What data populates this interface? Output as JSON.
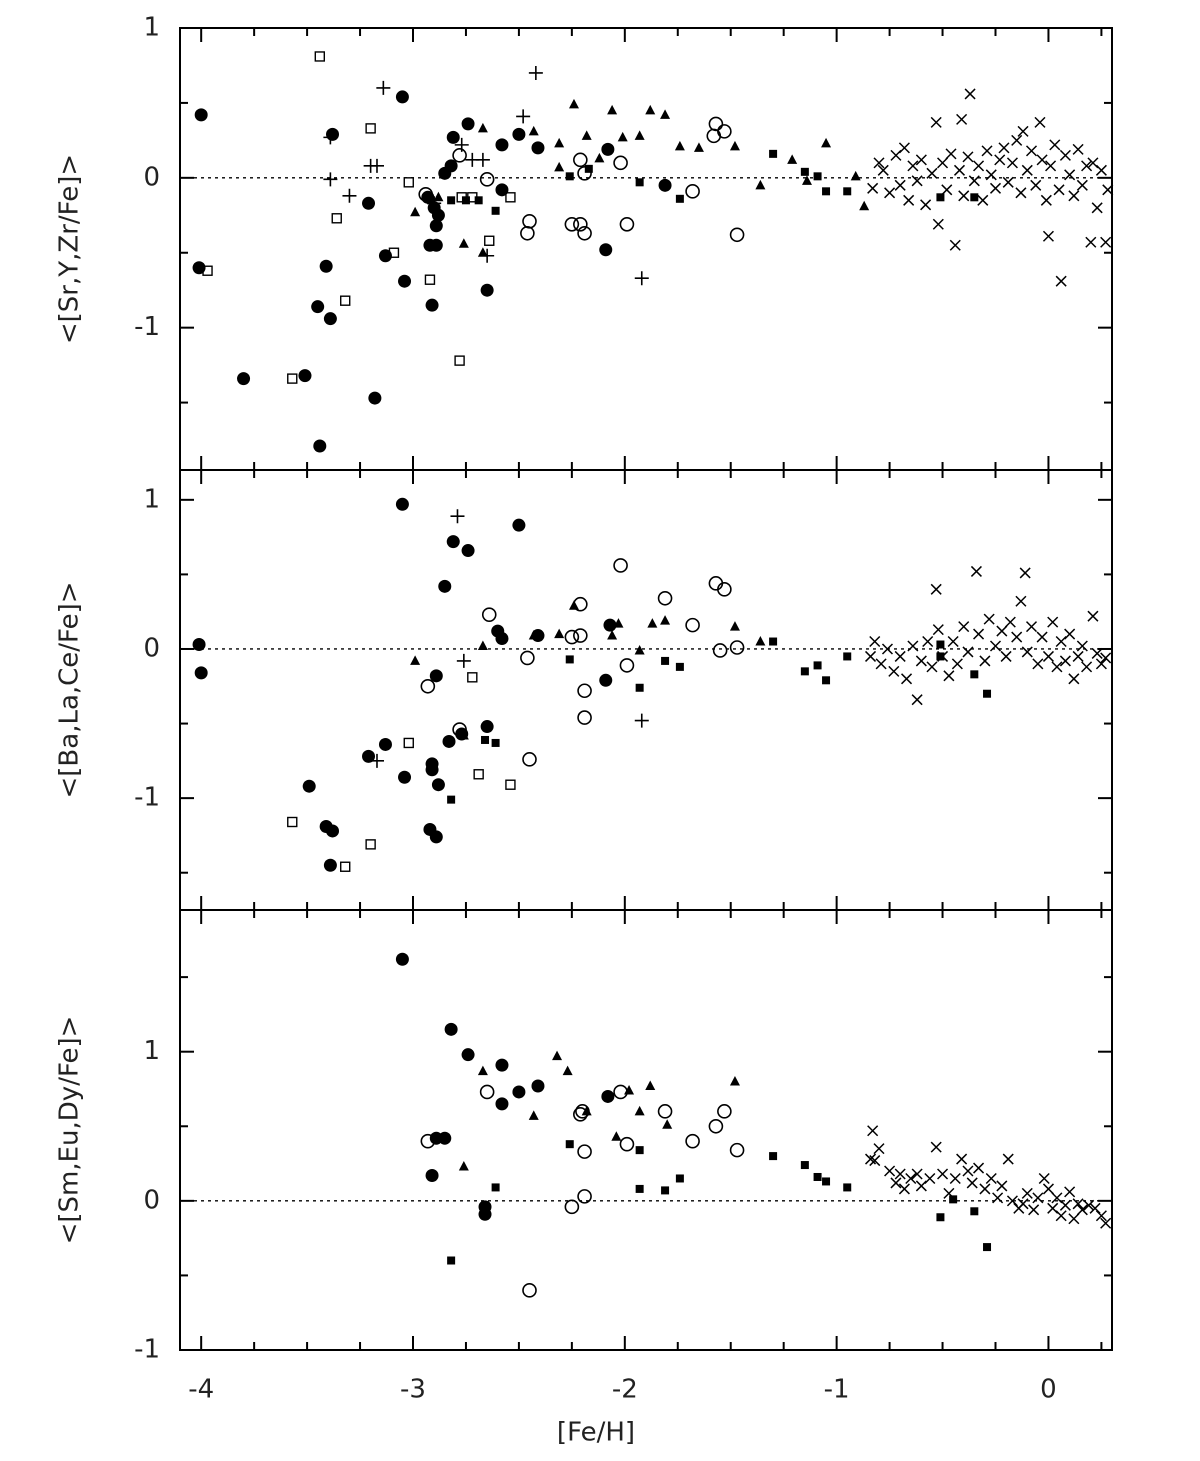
{
  "chart_data": [
    {
      "type": "scatter",
      "ylabel": "<[Sr,Y,Zr/Fe]>",
      "xlim": [
        -4.1,
        0.3
      ],
      "ylim": [
        -1.95,
        1.0
      ],
      "yticks": [
        -1,
        0,
        1
      ],
      "yminor": [
        -1.5,
        -0.5,
        0.5
      ],
      "reference_line": 0,
      "series": [
        {
          "marker": "filled-circle",
          "color": "#000000",
          "x": [
            -4.0,
            -4.01,
            -3.8,
            -3.51,
            -3.45,
            -3.41,
            -3.39,
            -3.38,
            -3.44,
            -3.18,
            -3.21,
            -3.13,
            -3.05,
            -3.04,
            -2.91,
            -2.92,
            -2.89,
            -2.89,
            -2.88,
            -2.9,
            -2.85,
            -2.82,
            -2.81,
            -2.74,
            -2.65,
            -2.58,
            -2.58,
            -2.5,
            -2.41,
            -2.08,
            -2.09,
            -1.81,
            -2.93
          ],
          "values": [
            0.42,
            -0.6,
            -1.34,
            -1.32,
            -0.86,
            -0.59,
            -0.94,
            0.29,
            -1.79,
            -1.47,
            -0.17,
            -0.52,
            0.54,
            -0.69,
            -0.85,
            -0.45,
            -0.45,
            -0.32,
            -0.25,
            -0.2,
            0.03,
            0.08,
            0.27,
            0.36,
            -0.75,
            0.22,
            -0.08,
            0.29,
            0.2,
            0.19,
            -0.48,
            -0.05,
            -0.13
          ]
        },
        {
          "marker": "open-circle",
          "color": "#000000",
          "x": [
            -2.94,
            -2.78,
            -2.65,
            -2.45,
            -2.46,
            -2.25,
            -2.21,
            -2.19,
            -2.21,
            -2.19,
            -2.02,
            -1.99,
            -1.68,
            -1.57,
            -1.53,
            -1.58,
            -1.47
          ],
          "values": [
            -0.11,
            0.15,
            -0.01,
            -0.29,
            -0.37,
            -0.31,
            0.12,
            0.03,
            -0.31,
            -0.37,
            0.1,
            -0.31,
            -0.09,
            0.36,
            0.31,
            0.28,
            -0.38
          ]
        },
        {
          "marker": "filled-square",
          "color": "#000000",
          "x": [
            -2.82,
            -2.75,
            -2.69,
            -2.61,
            -2.26,
            -2.17,
            -1.93,
            -1.74,
            -1.3,
            -1.15,
            -1.09,
            -1.05,
            -0.95,
            -0.51,
            -0.35
          ],
          "values": [
            -0.15,
            -0.15,
            -0.15,
            -0.22,
            0.01,
            0.06,
            -0.03,
            -0.14,
            0.16,
            0.04,
            0.01,
            -0.09,
            -0.09,
            -0.13,
            -0.13
          ]
        },
        {
          "marker": "open-square",
          "color": "#000000",
          "x": [
            -3.97,
            -3.57,
            -3.44,
            -3.36,
            -3.32,
            -3.2,
            -3.09,
            -3.02,
            -2.92,
            -2.78,
            -2.77,
            -2.72,
            -2.64,
            -2.54
          ],
          "values": [
            -0.62,
            -1.34,
            0.81,
            -0.27,
            -0.82,
            0.33,
            -0.5,
            -0.03,
            -0.68,
            -1.22,
            -0.13,
            -0.13,
            -0.42,
            -0.13
          ]
        },
        {
          "marker": "filled-triangle",
          "color": "#000000",
          "x": [
            -2.99,
            -2.91,
            -2.88,
            -2.76,
            -2.67,
            -2.67,
            -2.43,
            -2.31,
            -2.24,
            -2.31,
            -2.18,
            -2.06,
            -1.93,
            -1.88,
            -1.81,
            -1.74,
            -1.65,
            -1.48,
            -1.36,
            -1.21,
            -1.05,
            -1.14,
            -0.91,
            -0.87,
            -2.01,
            -2.12
          ],
          "values": [
            -0.23,
            -0.15,
            -0.13,
            -0.44,
            0.33,
            -0.5,
            0.31,
            0.07,
            0.49,
            0.23,
            0.28,
            0.45,
            0.28,
            0.45,
            0.42,
            0.21,
            0.2,
            0.21,
            -0.05,
            0.12,
            0.23,
            -0.02,
            0.01,
            -0.19,
            0.27,
            0.13
          ]
        },
        {
          "marker": "plus",
          "color": "#000000",
          "x": [
            -3.14,
            -3.39,
            -3.39,
            -3.3,
            -3.2,
            -3.17,
            -2.77,
            -2.72,
            -2.67,
            -2.65,
            -2.42,
            -2.48,
            -1.92,
            -2.9
          ],
          "values": [
            0.6,
            0.27,
            -0.01,
            -0.12,
            0.08,
            0.08,
            0.22,
            0.12,
            0.12,
            -0.52,
            0.7,
            0.41,
            -0.67,
            -0.17
          ]
        },
        {
          "marker": "cross",
          "color": "#000000",
          "x": [
            -0.83,
            -0.8,
            -0.78,
            -0.75,
            -0.72,
            -0.7,
            -0.68,
            -0.66,
            -0.64,
            -0.62,
            -0.6,
            -0.58,
            -0.55,
            -0.53,
            -0.52,
            -0.5,
            -0.48,
            -0.46,
            -0.44,
            -0.42,
            -0.41,
            -0.4,
            -0.38,
            -0.37,
            -0.35,
            -0.33,
            -0.31,
            -0.29,
            -0.27,
            -0.25,
            -0.23,
            -0.21,
            -0.19,
            -0.17,
            -0.15,
            -0.13,
            -0.12,
            -0.1,
            -0.08,
            -0.06,
            -0.04,
            -0.03,
            -0.01,
            0.0,
            0.01,
            0.03,
            0.05,
            0.06,
            0.08,
            0.1,
            0.12,
            0.14,
            0.16,
            0.18,
            0.2,
            0.21,
            0.23,
            0.25,
            0.27,
            0.28
          ],
          "values": [
            -0.07,
            0.1,
            0.05,
            -0.1,
            0.15,
            -0.05,
            0.2,
            -0.15,
            0.08,
            -0.02,
            0.12,
            -0.18,
            0.03,
            0.37,
            -0.31,
            0.1,
            -0.08,
            0.16,
            -0.45,
            0.05,
            0.39,
            -0.12,
            0.14,
            0.56,
            -0.02,
            0.08,
            -0.15,
            0.18,
            0.02,
            -0.07,
            0.12,
            0.2,
            -0.03,
            0.1,
            0.25,
            -0.1,
            0.31,
            0.05,
            0.18,
            -0.05,
            0.37,
            0.12,
            -0.15,
            -0.39,
            0.08,
            0.22,
            -0.08,
            -0.69,
            0.15,
            0.02,
            -0.12,
            0.19,
            -0.05,
            0.08,
            -0.43,
            0.1,
            -0.2,
            0.05,
            -0.43,
            -0.08
          ]
        }
      ]
    },
    {
      "type": "scatter",
      "ylabel": "<[Ba,La,Ce/Fe]>",
      "xlim": [
        -4.1,
        0.3
      ],
      "ylim": [
        -1.75,
        1.2
      ],
      "yticks": [
        -1,
        0,
        1
      ],
      "yminor": [
        -1.5,
        -0.5,
        0.5
      ],
      "reference_line": 0,
      "series": [
        {
          "marker": "filled-circle",
          "color": "#000000",
          "x": [
            -4.01,
            -4.0,
            -3.05,
            -2.81,
            -2.74,
            -2.5,
            -2.85,
            -2.6,
            -2.58,
            -2.41,
            -2.07,
            -2.09,
            -2.89,
            -3.49,
            -3.41,
            -3.38,
            -3.39,
            -3.21,
            -3.13,
            -3.04,
            -2.91,
            -2.91,
            -2.88,
            -2.83,
            -2.92,
            -2.89,
            -2.65,
            -2.77
          ],
          "values": [
            0.03,
            -0.16,
            0.97,
            0.72,
            0.66,
            0.83,
            0.42,
            0.12,
            0.07,
            0.09,
            0.16,
            -0.21,
            -0.18,
            -0.92,
            -1.19,
            -1.22,
            -1.45,
            -0.72,
            -0.64,
            -0.86,
            -0.77,
            -0.81,
            -0.91,
            -0.62,
            -1.21,
            -1.26,
            -0.52,
            -0.57
          ]
        },
        {
          "marker": "open-circle",
          "color": "#000000",
          "x": [
            -2.93,
            -2.64,
            -2.46,
            -2.45,
            -2.78,
            -2.25,
            -2.21,
            -2.21,
            -2.19,
            -2.19,
            -2.02,
            -1.99,
            -1.81,
            -1.68,
            -1.57,
            -1.53,
            -1.55,
            -1.47
          ],
          "values": [
            -0.25,
            0.23,
            -0.06,
            -0.74,
            -0.54,
            0.08,
            0.3,
            0.09,
            -0.28,
            -0.46,
            0.56,
            -0.11,
            0.34,
            0.16,
            0.44,
            0.4,
            -0.01,
            0.01
          ]
        },
        {
          "marker": "filled-square",
          "color": "#000000",
          "x": [
            -2.82,
            -2.66,
            -2.61,
            -2.26,
            -1.93,
            -1.81,
            -1.74,
            -1.3,
            -1.15,
            -1.09,
            -1.05,
            -0.95,
            -0.51,
            -0.35,
            -0.29,
            -0.51
          ],
          "values": [
            -1.01,
            -0.61,
            -0.63,
            -0.07,
            -0.26,
            -0.08,
            -0.12,
            0.05,
            -0.15,
            -0.11,
            -0.21,
            -0.05,
            -0.05,
            -0.17,
            -0.3,
            0.03
          ]
        },
        {
          "marker": "open-square",
          "color": "#000000",
          "x": [
            -3.57,
            -3.32,
            -3.2,
            -3.02,
            -2.72,
            -2.69,
            -2.54
          ],
          "values": [
            -1.16,
            -1.46,
            -1.31,
            -0.63,
            -0.19,
            -0.84,
            -0.91
          ]
        },
        {
          "marker": "filled-triangle",
          "color": "#000000",
          "x": [
            -2.99,
            -2.67,
            -2.43,
            -2.31,
            -2.24,
            -2.06,
            -2.03,
            -1.87,
            -1.81,
            -1.93,
            -1.48,
            -1.36,
            -2.76
          ],
          "values": [
            -0.08,
            0.02,
            0.09,
            0.1,
            0.29,
            0.09,
            0.17,
            0.17,
            0.19,
            -0.01,
            0.15,
            0.05,
            -0.58
          ]
        },
        {
          "marker": "plus",
          "color": "#000000",
          "x": [
            -2.79,
            -2.76,
            -3.17,
            -1.92
          ],
          "values": [
            0.89,
            -0.08,
            -0.75,
            -0.48
          ]
        },
        {
          "marker": "cross",
          "color": "#000000",
          "x": [
            -0.84,
            -0.82,
            -0.79,
            -0.76,
            -0.73,
            -0.7,
            -0.67,
            -0.64,
            -0.62,
            -0.6,
            -0.57,
            -0.55,
            -0.53,
            -0.52,
            -0.5,
            -0.47,
            -0.45,
            -0.43,
            -0.4,
            -0.38,
            -0.34,
            -0.33,
            -0.3,
            -0.28,
            -0.25,
            -0.22,
            -0.2,
            -0.18,
            -0.15,
            -0.13,
            -0.11,
            -0.1,
            -0.08,
            -0.05,
            -0.03,
            0.0,
            0.02,
            0.04,
            0.06,
            0.08,
            0.1,
            0.12,
            0.14,
            0.16,
            0.18,
            0.21,
            0.23,
            0.25,
            0.27
          ],
          "values": [
            -0.05,
            0.05,
            -0.1,
            0.0,
            -0.15,
            -0.05,
            -0.2,
            0.02,
            -0.34,
            -0.08,
            0.05,
            -0.12,
            0.4,
            0.13,
            -0.05,
            -0.18,
            0.05,
            -0.1,
            0.15,
            -0.02,
            0.52,
            0.1,
            -0.08,
            0.2,
            0.02,
            0.12,
            -0.05,
            0.18,
            0.08,
            0.32,
            0.51,
            -0.02,
            0.15,
            -0.1,
            0.08,
            -0.05,
            0.18,
            -0.12,
            0.05,
            -0.08,
            0.1,
            -0.2,
            -0.05,
            0.02,
            -0.12,
            0.22,
            -0.03,
            -0.1,
            -0.06
          ]
        }
      ]
    },
    {
      "type": "scatter",
      "ylabel": "<[Sm,Eu,Dy/Fe]>",
      "xlabel": "[Fe/H]",
      "xlim": [
        -4.1,
        0.3
      ],
      "ylim": [
        -1,
        1.95
      ],
      "xticks": [
        -4,
        -3,
        -2,
        -1,
        0
      ],
      "xminor": [
        -3.75,
        -3.5,
        -3.25,
        -2.75,
        -2.5,
        -2.25,
        -1.75,
        -1.5,
        -1.25,
        -0.75,
        -0.5,
        -0.25,
        0.25
      ],
      "yticks": [
        -1,
        0,
        1
      ],
      "yminor": [
        -0.5,
        0.5,
        1.5
      ],
      "reference_line": 0,
      "series": [
        {
          "marker": "filled-circle",
          "color": "#000000",
          "x": [
            -3.05,
            -2.82,
            -2.74,
            -2.58,
            -2.5,
            -2.41,
            -2.58,
            -2.08,
            -2.89,
            -2.85,
            -2.91,
            -2.66,
            -2.66
          ],
          "values": [
            1.62,
            1.15,
            0.98,
            0.91,
            0.73,
            0.77,
            0.65,
            0.7,
            0.42,
            0.42,
            0.17,
            -0.04,
            -0.09
          ]
        },
        {
          "marker": "open-circle",
          "color": "#000000",
          "x": [
            -2.93,
            -2.65,
            -2.45,
            -2.25,
            -2.19,
            -2.21,
            -2.2,
            -2.19,
            -2.02,
            -1.99,
            -1.81,
            -1.68,
            -1.57,
            -1.53,
            -1.47
          ],
          "values": [
            0.4,
            0.73,
            -0.6,
            -0.04,
            0.03,
            0.58,
            0.6,
            0.33,
            0.73,
            0.38,
            0.6,
            0.4,
            0.5,
            0.6,
            0.34
          ]
        },
        {
          "marker": "filled-square",
          "color": "#000000",
          "x": [
            -2.82,
            -2.61,
            -2.26,
            -1.93,
            -1.93,
            -1.81,
            -1.74,
            -1.3,
            -1.15,
            -1.09,
            -1.05,
            -0.95,
            -0.51,
            -0.35,
            -0.29,
            -0.45
          ],
          "values": [
            -0.4,
            0.09,
            0.38,
            0.34,
            0.08,
            0.07,
            0.15,
            0.3,
            0.24,
            0.16,
            0.13,
            0.09,
            -0.11,
            -0.07,
            -0.31,
            0.01
          ]
        },
        {
          "marker": "filled-triangle",
          "color": "#000000",
          "x": [
            -2.76,
            -2.67,
            -2.43,
            -2.32,
            -2.27,
            -2.18,
            -2.04,
            -1.98,
            -1.93,
            -1.88,
            -1.8,
            -1.48
          ],
          "values": [
            0.23,
            0.87,
            0.57,
            0.97,
            0.87,
            0.6,
            0.43,
            0.74,
            0.6,
            0.77,
            0.51,
            0.8
          ]
        },
        {
          "marker": "cross",
          "color": "#000000",
          "x": [
            -0.83,
            -0.82,
            -0.8,
            -0.84,
            -0.75,
            -0.72,
            -0.7,
            -0.68,
            -0.65,
            -0.62,
            -0.6,
            -0.56,
            -0.53,
            -0.5,
            -0.47,
            -0.44,
            -0.41,
            -0.38,
            -0.36,
            -0.33,
            -0.3,
            -0.27,
            -0.24,
            -0.22,
            -0.19,
            -0.17,
            -0.14,
            -0.12,
            -0.1,
            -0.07,
            -0.05,
            -0.02,
            0.0,
            0.02,
            0.04,
            0.06,
            0.08,
            0.1,
            0.12,
            0.14,
            0.16,
            0.19,
            0.22,
            0.25,
            0.27
          ],
          "values": [
            0.47,
            0.27,
            0.35,
            0.28,
            0.2,
            0.12,
            0.18,
            0.08,
            0.15,
            0.18,
            0.1,
            0.15,
            0.36,
            0.18,
            0.05,
            0.15,
            0.28,
            0.2,
            0.12,
            0.22,
            0.08,
            0.15,
            0.02,
            0.1,
            0.28,
            0.0,
            -0.05,
            -0.02,
            0.05,
            -0.06,
            0.02,
            0.15,
            0.08,
            -0.05,
            0.02,
            -0.1,
            -0.03,
            0.06,
            -0.12,
            -0.02,
            -0.06,
            -0.03,
            -0.05,
            -0.1,
            -0.15
          ]
        }
      ]
    }
  ]
}
